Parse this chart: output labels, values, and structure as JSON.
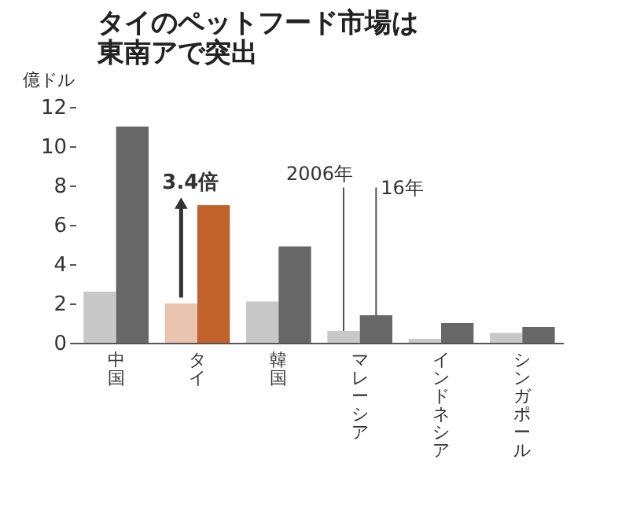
{
  "chart_data": {
    "type": "bar",
    "title": "タイのペットフード市場は東南アで突出",
    "ylabel": "億ドル",
    "categories": [
      "中国",
      "タイ",
      "韓国",
      "マレーシア",
      "インドネシア",
      "シンガポール"
    ],
    "series": [
      {
        "name": "2006年",
        "colors": [
          "#c8c8c8",
          "#e8c4b0",
          "#c8c8c8",
          "#c8c8c8",
          "#c8c8c8",
          "#c8c8c8"
        ],
        "values": [
          2.6,
          2.0,
          2.1,
          0.6,
          0.2,
          0.5
        ]
      },
      {
        "name": "16年",
        "colors": [
          "#676767",
          "#c0622a",
          "#676767",
          "#676767",
          "#676767",
          "#676767"
        ],
        "values": [
          11.0,
          7.0,
          4.9,
          1.4,
          1.0,
          0.8
        ]
      }
    ],
    "ylim": [
      0,
      12
    ],
    "yticks": [
      0,
      2,
      4,
      6,
      8,
      10,
      12
    ],
    "grid": false,
    "legend": false,
    "annotations": [
      "3.4倍"
    ]
  }
}
